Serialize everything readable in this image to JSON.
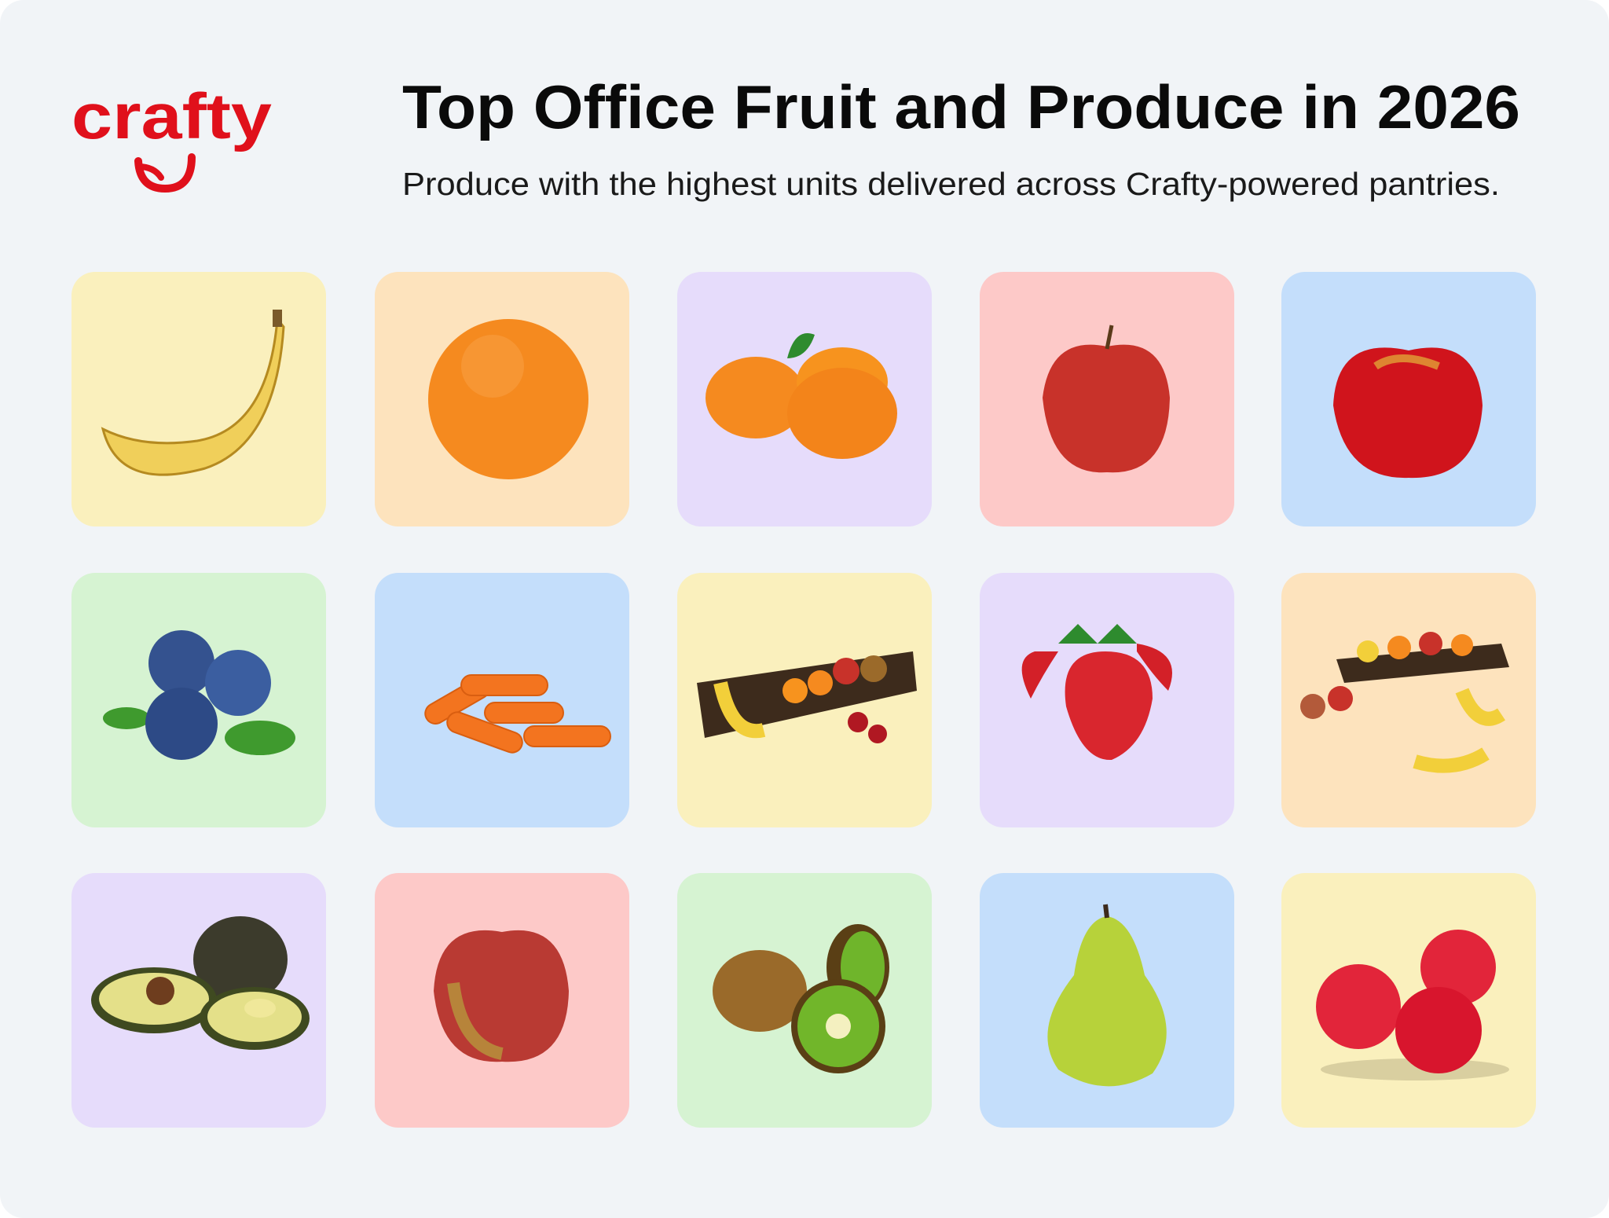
{
  "logo": "crafty",
  "header": {
    "title": "Top Office Fruit and Produce in 2026",
    "subtitle": "Produce with the highest units delivered across Crafty-powered pantries."
  }
}
